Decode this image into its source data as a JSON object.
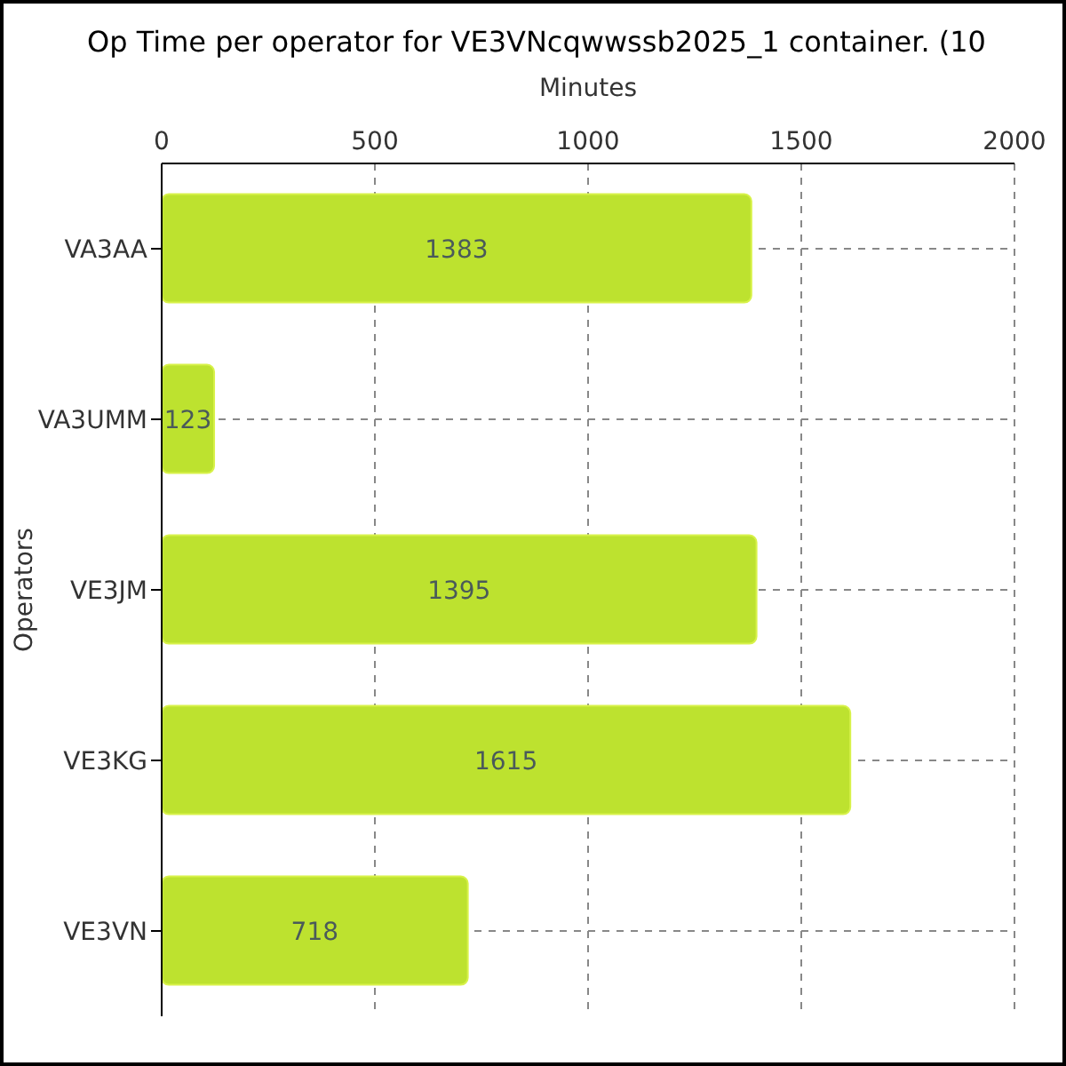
{
  "chart_data": {
    "type": "bar",
    "title": "Op Time per operator for VE3VNcqwwssb2025_1 container. (10",
    "xlabel": "Minutes",
    "ylabel": "Operators",
    "orientation": "horizontal",
    "categories": [
      "VA3AA",
      "VA3UMM",
      "VE3JM",
      "VE3KG",
      "VE3VN"
    ],
    "values": [
      1383,
      123,
      1395,
      1615,
      718
    ],
    "color": "#bde22f",
    "xlim": [
      0,
      2000
    ],
    "xticks": [
      0,
      500,
      1000,
      1500,
      2000
    ],
    "grid": true,
    "data_labels": true
  }
}
